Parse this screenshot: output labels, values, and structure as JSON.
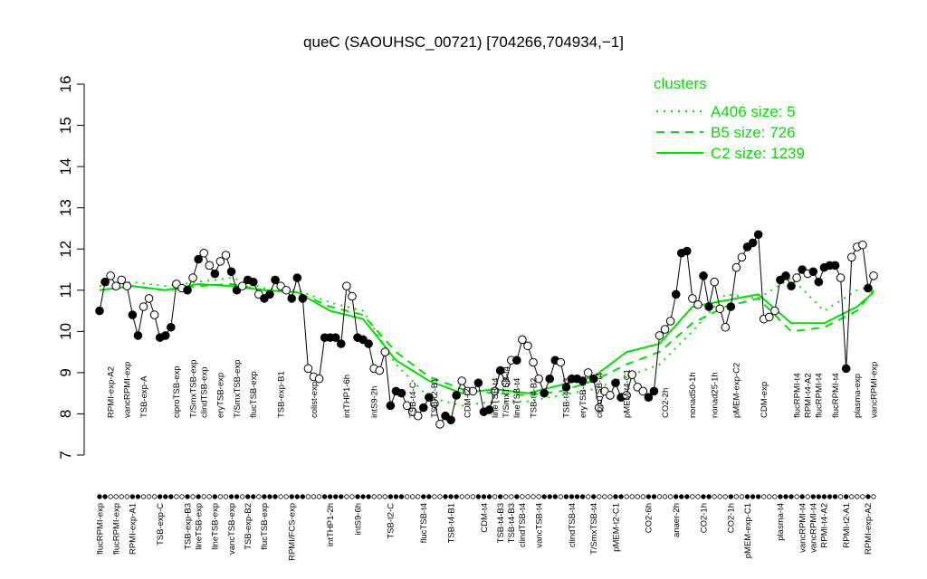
{
  "chart_data": {
    "type": "line",
    "title": "queC (SAOUHSC_00721) [704266,704934,−1]",
    "categories": [
      "flucRPMI-exp",
      null,
      "RPMI-exp-A2",
      "flucRPMI-exp",
      null,
      "vancRPMI-exp",
      "RPMI-exp-A1",
      null,
      "TSB-exp-A",
      null,
      null,
      "TSB-exp-C",
      null,
      null,
      "ciproTSB-exp",
      null,
      "TSB-exp-B3",
      "T/SmxTSB-exp",
      "lineTSB-exp",
      "clindTSB-exp",
      null,
      "lineTSB-exp",
      "eryTSB-exp",
      null,
      "vancTSB-exp",
      "T/SmxTSB-exp",
      null,
      "TSB-exp-B2",
      "flucTSB-exp",
      null,
      "flucTSB-exp",
      null,
      null,
      "TSB-exp-B1",
      null,
      "RPMI/FCS-exp",
      null,
      null,
      null,
      "colist-exp",
      null,
      null,
      "intTHP1-2h",
      null,
      null,
      "intTHP1-6h",
      null,
      "intS9-6h",
      null,
      null,
      "intS9-2h",
      null,
      null,
      "TSB-t2-C",
      null,
      null,
      null,
      "TSB-t4-C",
      null,
      "flucTSB-t4",
      null,
      "TSB-t2-B1",
      null,
      null,
      "TSB-t4-B1",
      null,
      null,
      "CDM-t2",
      null,
      null,
      "CDM-t4",
      null,
      "lineTSB-t4",
      "TSB-t4-B3",
      "T/SmxTSB-t4",
      "TSB-t4-B3",
      "lineTSB-t4",
      "clindTSB-t4",
      null,
      "TSB-t4-B2",
      "vancTSB-t4",
      null,
      null,
      null,
      null,
      "TSB-t4-B3",
      "clindTSB-t4",
      null,
      "eryTSB-t4",
      null,
      "T/SmxTSB-t4",
      "ciproTSB-t4",
      null,
      null,
      "pMEM-t2-C1",
      null,
      "pMEM-t4-C1",
      null,
      null,
      null,
      "CO2-6h",
      null,
      null,
      "CO2-2h",
      null,
      "anaer-2h",
      null,
      null,
      "nonad50-1h",
      null,
      "CO2-1h",
      null,
      "nonad25-1h",
      null,
      null,
      "CO2-1h",
      "pMEM-exp-C2",
      null,
      "pMEM-exp-C1",
      null,
      null,
      "CDM-exp",
      null,
      null,
      "plasma-t4",
      null,
      null,
      "flucRPMI-t4",
      "vancRPMI-t4",
      "RPMI-t4-A2",
      "vancRPMI-t4",
      "flucRPMI-t4",
      "RPMI-t4-A2",
      null,
      "flucRPMI-t4",
      null,
      "RPMI-t2-A1",
      null,
      "plasma-exp",
      null,
      "RPMI-exp-A2",
      "vancRPMI-exp"
    ],
    "samples": {
      "values": [
        10.5,
        11.2,
        11.35,
        11.1,
        11.25,
        11.1,
        10.4,
        9.9,
        10.6,
        10.8,
        10.4,
        9.85,
        9.9,
        10.1,
        11.15,
        11.05,
        11.0,
        11.3,
        11.75,
        11.9,
        11.6,
        11.4,
        11.7,
        11.85,
        11.45,
        11.0,
        11.1,
        11.25,
        11.2,
        10.9,
        10.8,
        10.9,
        11.25,
        11.1,
        11.0,
        10.8,
        11.3,
        10.8,
        9.1,
        8.9,
        8.85,
        9.85,
        9.85,
        9.85,
        9.7,
        11.1,
        10.85,
        9.85,
        9.8,
        9.7,
        9.1,
        9.05,
        9.5,
        8.2,
        8.55,
        8.5,
        8.2,
        8.05,
        7.95,
        8.15,
        8.4,
        8.25,
        7.75,
        7.95,
        7.85,
        8.45,
        8.8,
        8.55,
        8.55,
        8.75,
        8.05,
        8.1,
        8.55,
        9.05,
        8.75,
        9.3,
        9.3,
        9.8,
        9.65,
        9.25,
        8.85,
        8.5,
        8.85,
        9.3,
        9.25,
        8.65,
        8.85,
        8.85,
        8.8,
        9.0,
        8.85,
        8.15,
        8.55,
        8.45,
        8.75,
        8.4,
        8.45,
        8.95,
        8.65,
        8.55,
        8.4,
        8.55,
        9.9,
        10.05,
        10.25,
        10.9,
        11.9,
        11.95,
        10.8,
        10.65,
        11.35,
        10.6,
        11.2,
        10.55,
        10.1,
        10.6,
        11.55,
        11.8,
        12.05,
        12.15,
        12.35,
        10.3,
        10.35,
        10.5,
        11.25,
        11.35,
        11.1,
        11.3,
        11.5,
        11.4,
        11.45,
        11.2,
        11.55,
        11.6,
        11.6,
        11.3,
        9.1,
        11.8,
        12.05,
        12.1,
        11.05,
        11.35
      ],
      "colors": [
        "black",
        "black",
        "white",
        "white",
        "white",
        "white",
        "black",
        "black",
        "white",
        "white",
        "white",
        "black",
        "black",
        "black",
        "white",
        "white",
        "black",
        "white",
        "black",
        "white",
        "white",
        "black",
        "white",
        "white",
        "black",
        "black",
        "white",
        "black",
        "black",
        "white",
        "black",
        "black",
        "black",
        "white",
        "white",
        "black",
        "black",
        "black",
        "white",
        "white",
        "white",
        "black",
        "black",
        "black",
        "black",
        "white",
        "white",
        "black",
        "black",
        "black",
        "white",
        "white",
        "white",
        "black",
        "black",
        "black",
        "white",
        "white",
        "white",
        "black",
        "black",
        "white",
        "white",
        "black",
        "black",
        "black",
        "white",
        "white",
        "white",
        "black",
        "black",
        "black",
        "white",
        "black",
        "white",
        "white",
        "black",
        "white",
        "white",
        "white",
        "white",
        "black",
        "black",
        "black",
        "white",
        "black",
        "black",
        "black",
        "black",
        "white",
        "black",
        "white",
        "white",
        "white",
        "black",
        "black",
        "white",
        "white",
        "white",
        "white",
        "black",
        "black",
        "white",
        "white",
        "white",
        "black",
        "black",
        "black",
        "white",
        "white",
        "black",
        "black",
        "white",
        "white",
        "white",
        "black",
        "white",
        "white",
        "black",
        "black",
        "black",
        "white",
        "white",
        "white",
        "black",
        "black",
        "black",
        "white",
        "black",
        "white",
        "black",
        "black",
        "black",
        "black",
        "black",
        "white",
        "black",
        "white",
        "white",
        "white",
        "black",
        "white"
      ]
    },
    "series": [
      {
        "name": "A406 size: 5",
        "color": "#00e000",
        "style": "dotted",
        "x": [
          0,
          6,
          12,
          18,
          24,
          30,
          36,
          42,
          48,
          54,
          60,
          66,
          72,
          78,
          84,
          90,
          96,
          102,
          108,
          114,
          120,
          126,
          132,
          138,
          141
        ],
        "values": [
          11.1,
          11.2,
          11.1,
          11.2,
          11.3,
          11.05,
          11.0,
          10.7,
          10.5,
          9.2,
          8.4,
          8.2,
          8.3,
          8.3,
          8.45,
          8.6,
          8.9,
          9.2,
          10.0,
          10.9,
          10.8,
          11.3,
          10.5,
          11.0,
          11.1
        ]
      },
      {
        "name": "B5 size: 726",
        "color": "#00e000",
        "style": "dashed",
        "x": [
          0,
          6,
          12,
          18,
          24,
          30,
          36,
          42,
          48,
          54,
          60,
          66,
          72,
          78,
          84,
          90,
          96,
          102,
          108,
          114,
          120,
          126,
          132,
          138,
          141
        ],
        "values": [
          11.0,
          11.1,
          11.0,
          11.1,
          11.15,
          11.0,
          10.95,
          10.6,
          10.4,
          9.5,
          8.9,
          8.6,
          8.5,
          8.45,
          8.55,
          8.8,
          9.2,
          9.5,
          10.2,
          10.6,
          10.8,
          10.0,
          10.1,
          10.5,
          11.0
        ]
      },
      {
        "name": "C2 size: 1239",
        "color": "#00e000",
        "style": "solid",
        "x": [
          0,
          6,
          12,
          18,
          24,
          30,
          36,
          42,
          48,
          54,
          60,
          66,
          72,
          78,
          84,
          90,
          96,
          102,
          108,
          114,
          120,
          126,
          132,
          138,
          141
        ],
        "values": [
          11.0,
          11.1,
          11.0,
          11.15,
          11.1,
          11.0,
          10.95,
          10.5,
          10.3,
          9.3,
          8.8,
          8.5,
          8.6,
          8.5,
          8.7,
          8.9,
          9.5,
          9.7,
          10.6,
          10.75,
          10.9,
          10.2,
          10.2,
          10.6,
          10.95
        ]
      }
    ],
    "xlim": [
      0,
      141
    ],
    "ylim": [
      7,
      16
    ],
    "yticks": [
      7,
      8,
      9,
      10,
      11,
      12,
      13,
      14,
      15,
      16
    ],
    "legend_title": "clusters",
    "legend": "top-right"
  }
}
